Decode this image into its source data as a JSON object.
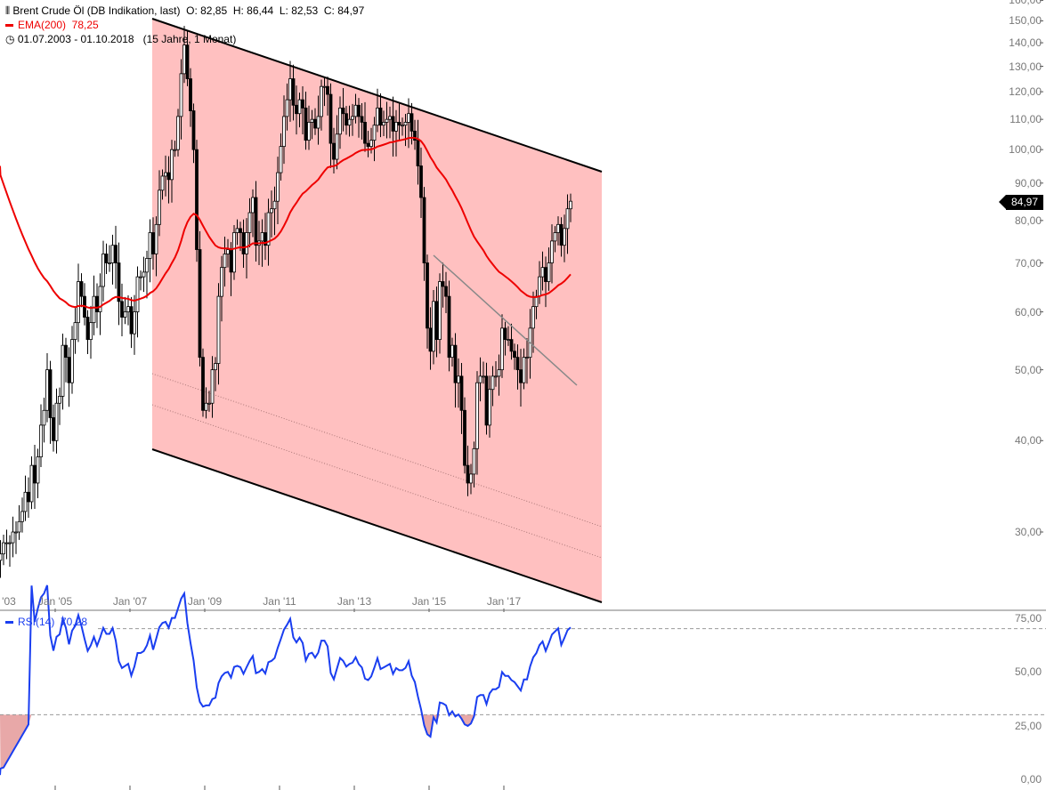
{
  "header": {
    "icon": "candlestick-icon",
    "title": "Brent Crude Öl (DB Indikation, last)",
    "ohlc": "O: 82,85  H: 86,44  L: 82,53  C: 84,97",
    "ema_label": "EMA(200)  78,25",
    "clock_icon": "clock-icon",
    "range": "01.07.2003 - 01.10.2018   (15 Jahre, 1 Monat)"
  },
  "last_price": "84,97",
  "rsi_label": "RSI(14)  70,28",
  "colors": {
    "channel": "#ffc0c0",
    "ema": "#ee0000",
    "rsi": "#1a3ef0",
    "rsi_fill": "#e8a8a8"
  },
  "chart_data": [
    {
      "type": "candlestick",
      "scale": "log",
      "ylim": [
        25,
        160
      ],
      "y_ticks": [
        "160,00",
        "150,00",
        "140,00",
        "130,00",
        "120,00",
        "110,00",
        "100,00",
        "90,00",
        "80,00",
        "70,00",
        "60,00",
        "50,00",
        "40,00",
        "30,00"
      ],
      "x_ticks": [
        "'03",
        "Jan '05",
        "Jan '07",
        "Jan '09",
        "Jan '11",
        "Jan '13",
        "Jan '15",
        "Jan '17"
      ],
      "start": "2003-07",
      "end": "2018-10",
      "monthly_close": [
        28,
        29,
        29,
        29,
        30,
        30,
        31,
        32,
        34,
        33,
        37,
        35,
        38,
        42,
        44,
        50,
        43,
        40,
        45,
        46,
        54,
        52,
        48,
        55,
        58,
        66,
        63,
        59,
        55,
        58,
        63,
        60,
        65,
        72,
        70,
        70,
        74,
        70,
        62,
        59,
        60,
        61,
        56,
        60,
        67,
        67,
        68,
        71,
        77,
        72,
        79,
        88,
        92,
        93,
        91,
        100,
        100,
        111,
        127,
        139,
        125,
        113,
        100,
        73,
        52,
        44,
        45,
        45,
        50,
        51,
        63,
        69,
        72,
        73,
        68,
        77,
        78,
        77,
        72,
        77,
        82,
        86,
        74,
        75,
        77,
        74,
        82,
        83,
        85,
        93,
        101,
        111,
        117,
        125,
        115,
        112,
        117,
        114,
        103,
        109,
        110,
        107,
        111,
        122,
        122,
        119,
        102,
        97,
        105,
        114,
        112,
        108,
        110,
        111,
        115,
        111,
        109,
        102,
        101,
        103,
        108,
        114,
        108,
        109,
        110,
        111,
        106,
        109,
        108,
        108,
        109,
        112,
        106,
        103,
        95,
        86,
        70,
        57,
        53,
        62,
        55,
        66,
        65,
        63,
        52,
        54,
        48,
        49,
        44,
        37,
        35,
        36,
        39,
        48,
        49,
        49,
        42,
        47,
        49,
        49,
        50,
        57,
        55,
        55,
        53,
        52,
        50,
        48,
        52,
        52,
        57,
        61,
        63,
        67,
        69,
        66,
        70,
        75,
        77,
        79,
        74,
        78,
        83,
        85
      ],
      "overlays": [
        "EMA(200)",
        "downtrend channel",
        "trendline"
      ]
    },
    {
      "type": "line",
      "name": "RSI(14)",
      "ylim": [
        0,
        75
      ],
      "y_ticks": [
        "75,00",
        "50,00",
        "25,00",
        "0,00"
      ],
      "levels": [
        30,
        70
      ]
    }
  ]
}
